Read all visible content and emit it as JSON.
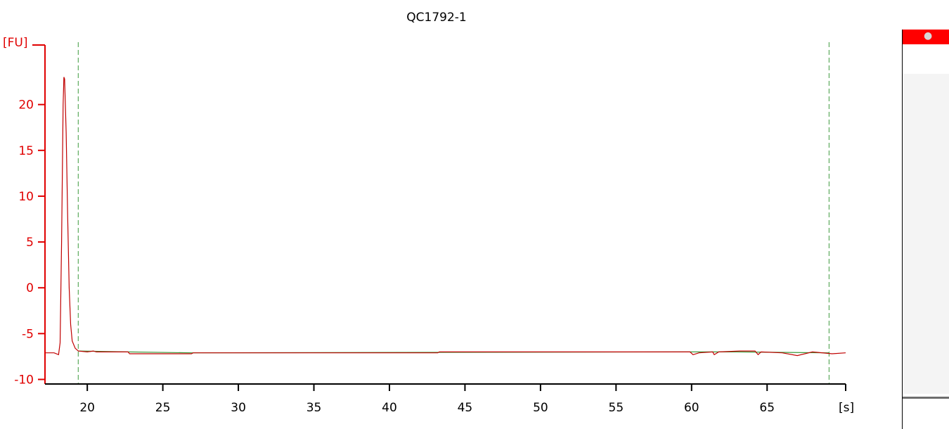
{
  "chart_data": {
    "type": "line",
    "title": "QC1792-1",
    "xlabel": "[s]",
    "ylabel": "[FU]",
    "xlim": [
      17.2,
      70.2
    ],
    "ylim": [
      -10.5,
      26.5
    ],
    "x_ticks": [
      20,
      25,
      30,
      35,
      40,
      45,
      50,
      55,
      60,
      65
    ],
    "y_ticks": [
      -10,
      -5,
      0,
      5,
      10,
      15,
      20
    ],
    "marker_lines_x": [
      19.4,
      69.1
    ],
    "grid": false,
    "series": [
      {
        "color": "#c00000",
        "points": [
          [
            17.2,
            -7.1
          ],
          [
            17.8,
            -7.1
          ],
          [
            18.1,
            -7.3
          ],
          [
            18.2,
            -6.0
          ],
          [
            18.3,
            5.0
          ],
          [
            18.4,
            20.0
          ],
          [
            18.45,
            23.0
          ],
          [
            18.5,
            22.8
          ],
          [
            18.6,
            17.0
          ],
          [
            18.7,
            8.0
          ],
          [
            18.8,
            0.0
          ],
          [
            18.9,
            -4.0
          ],
          [
            19.0,
            -5.8
          ],
          [
            19.2,
            -6.6
          ],
          [
            19.4,
            -6.9
          ],
          [
            20.0,
            -7.0
          ],
          [
            20.4,
            -6.9
          ],
          [
            20.6,
            -7.0
          ],
          [
            22.7,
            -7.0
          ],
          [
            22.8,
            -7.2
          ],
          [
            26.9,
            -7.2
          ],
          [
            27.0,
            -7.1
          ],
          [
            43.2,
            -7.1
          ],
          [
            43.3,
            -7.0
          ],
          [
            59.9,
            -7.0
          ],
          [
            60.1,
            -7.3
          ],
          [
            60.5,
            -7.1
          ],
          [
            61.4,
            -7.0
          ],
          [
            61.5,
            -7.3
          ],
          [
            61.8,
            -7.0
          ],
          [
            63.2,
            -6.9
          ],
          [
            64.2,
            -6.9
          ],
          [
            64.4,
            -7.3
          ],
          [
            64.6,
            -7.0
          ],
          [
            66.0,
            -7.1
          ],
          [
            67.0,
            -7.4
          ],
          [
            68.0,
            -7.0
          ],
          [
            69.3,
            -7.2
          ],
          [
            70.2,
            -7.1
          ]
        ]
      },
      {
        "color": "#3c9a3c",
        "points": [
          [
            19.4,
            -6.9
          ],
          [
            22.7,
            -7.0
          ],
          [
            27.0,
            -7.1
          ],
          [
            59.9,
            -7.0
          ],
          [
            63.0,
            -7.0
          ],
          [
            69.1,
            -7.1
          ]
        ]
      }
    ]
  },
  "legend_panel": {
    "header_color": "#ff0000",
    "header_icon": "gear-icon"
  }
}
